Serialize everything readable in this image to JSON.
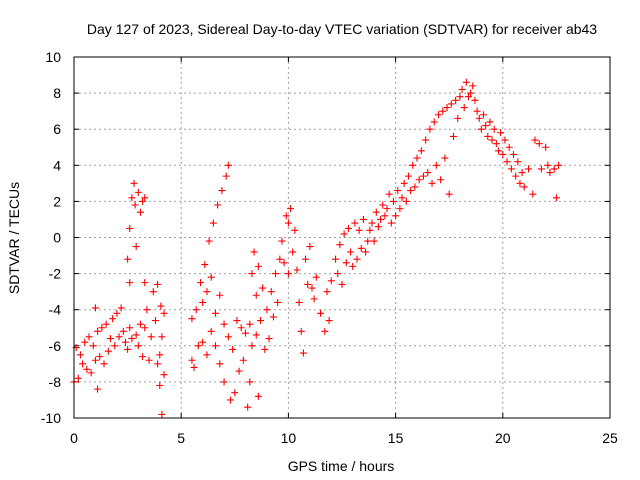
{
  "chart_data": {
    "type": "scatter",
    "title": "Day 127 of 2023, Sidereal Day-to-day VTEC variation (SDTVAR) for receiver ab43",
    "xlabel": "GPS time / hours",
    "ylabel": "SDTVAR / TECUs",
    "xlim": [
      0,
      25
    ],
    "ylim": [
      -10,
      10
    ],
    "xticks": [
      "0",
      "5",
      "10",
      "15",
      "20",
      "25"
    ],
    "yticks": [
      "-10",
      "-8",
      "-6",
      "-4",
      "-2",
      "0",
      "2",
      "4",
      "6",
      "8",
      "10"
    ],
    "grid": true,
    "marker": "+",
    "series": [
      {
        "name": "SDTVAR",
        "color": "#ff0000",
        "points": [
          [
            0.0,
            -8.0
          ],
          [
            0.1,
            -6.1
          ],
          [
            0.2,
            -7.8
          ],
          [
            0.3,
            -6.5
          ],
          [
            0.4,
            -7.0
          ],
          [
            0.5,
            -5.8
          ],
          [
            0.6,
            -7.3
          ],
          [
            0.7,
            -5.5
          ],
          [
            0.8,
            -7.5
          ],
          [
            0.9,
            -6.0
          ],
          [
            1.0,
            -3.9
          ],
          [
            1.0,
            -6.8
          ],
          [
            1.1,
            -8.4
          ],
          [
            1.1,
            -5.2
          ],
          [
            1.2,
            -6.6
          ],
          [
            1.3,
            -5.0
          ],
          [
            1.4,
            -7.0
          ],
          [
            1.5,
            -4.8
          ],
          [
            1.6,
            -6.3
          ],
          [
            1.7,
            -5.6
          ],
          [
            1.8,
            -4.5
          ],
          [
            1.9,
            -6.0
          ],
          [
            2.0,
            -4.2
          ],
          [
            2.1,
            -5.5
          ],
          [
            2.2,
            -3.9
          ],
          [
            2.3,
            -5.2
          ],
          [
            2.4,
            -5.8
          ],
          [
            2.5,
            -6.2
          ],
          [
            2.6,
            -5.0
          ],
          [
            2.7,
            -5.6
          ],
          [
            2.5,
            -1.2
          ],
          [
            2.6,
            -2.5
          ],
          [
            2.6,
            0.5
          ],
          [
            2.7,
            2.2
          ],
          [
            2.8,
            3.0
          ],
          [
            2.85,
            1.8
          ],
          [
            2.9,
            -0.5
          ],
          [
            3.0,
            2.5
          ],
          [
            3.1,
            1.4
          ],
          [
            3.2,
            2.0
          ],
          [
            3.3,
            2.2
          ],
          [
            2.9,
            -5.4
          ],
          [
            3.0,
            -6.0
          ],
          [
            3.1,
            -4.8
          ],
          [
            3.2,
            -6.6
          ],
          [
            3.3,
            -2.5
          ],
          [
            3.3,
            -5.0
          ],
          [
            3.4,
            -4.0
          ],
          [
            3.5,
            -6.8
          ],
          [
            3.6,
            -5.5
          ],
          [
            3.7,
            -3.0
          ],
          [
            3.8,
            -4.6
          ],
          [
            3.9,
            -7.0
          ],
          [
            3.9,
            -2.6
          ],
          [
            4.0,
            -8.2
          ],
          [
            4.0,
            -6.5
          ],
          [
            4.05,
            -3.8
          ],
          [
            4.1,
            -9.8
          ],
          [
            4.1,
            -5.5
          ],
          [
            4.2,
            -4.2
          ],
          [
            4.2,
            -7.6
          ],
          [
            5.5,
            -6.8
          ],
          [
            5.5,
            -4.5
          ],
          [
            5.6,
            -7.2
          ],
          [
            5.7,
            -4.0
          ],
          [
            5.8,
            -6.0
          ],
          [
            5.9,
            -2.5
          ],
          [
            6.0,
            -3.6
          ],
          [
            6.0,
            -5.8
          ],
          [
            6.1,
            -1.5
          ],
          [
            6.2,
            -3.0
          ],
          [
            6.2,
            -6.5
          ],
          [
            6.3,
            -0.2
          ],
          [
            6.4,
            -2.2
          ],
          [
            6.4,
            -5.2
          ],
          [
            6.5,
            0.8
          ],
          [
            6.6,
            -4.2
          ],
          [
            6.6,
            -6.0
          ],
          [
            6.7,
            1.8
          ],
          [
            6.8,
            -3.2
          ],
          [
            6.8,
            -7.0
          ],
          [
            6.9,
            2.6
          ],
          [
            7.0,
            -4.8
          ],
          [
            7.0,
            -8.0
          ],
          [
            7.1,
            3.4
          ],
          [
            7.2,
            4.0
          ],
          [
            7.2,
            -5.5
          ],
          [
            7.3,
            -9.0
          ],
          [
            7.4,
            -6.2
          ],
          [
            7.5,
            -8.6
          ],
          [
            7.6,
            -4.6
          ],
          [
            7.7,
            -7.4
          ],
          [
            7.8,
            -5.0
          ],
          [
            7.9,
            -6.8
          ],
          [
            8.0,
            -5.3
          ],
          [
            8.1,
            -9.4
          ],
          [
            8.2,
            -8.0
          ],
          [
            8.2,
            -4.8
          ],
          [
            8.3,
            -2.0
          ],
          [
            8.3,
            -6.0
          ],
          [
            8.4,
            -0.8
          ],
          [
            8.5,
            -3.2
          ],
          [
            8.5,
            -5.4
          ],
          [
            8.6,
            -1.6
          ],
          [
            8.6,
            -8.8
          ],
          [
            8.7,
            -4.6
          ],
          [
            8.8,
            -2.8
          ],
          [
            8.9,
            -6.2
          ],
          [
            9.0,
            -4.0
          ],
          [
            9.1,
            -5.6
          ],
          [
            9.2,
            -3.0
          ],
          [
            9.3,
            -4.4
          ],
          [
            9.4,
            -2.0
          ],
          [
            9.5,
            -3.6
          ],
          [
            9.6,
            -1.2
          ],
          [
            9.7,
            -0.2
          ],
          [
            9.8,
            -1.4
          ],
          [
            9.9,
            1.2
          ],
          [
            10.0,
            0.8
          ],
          [
            10.0,
            -2.0
          ],
          [
            10.1,
            1.6
          ],
          [
            10.2,
            -0.8
          ],
          [
            10.3,
            0.4
          ],
          [
            10.4,
            -1.8
          ],
          [
            10.5,
            -3.6
          ],
          [
            10.6,
            -5.2
          ],
          [
            10.7,
            -6.4
          ],
          [
            10.8,
            -1.2
          ],
          [
            10.9,
            -2.6
          ],
          [
            11.0,
            -0.5
          ],
          [
            11.1,
            -2.8
          ],
          [
            11.2,
            -3.4
          ],
          [
            11.3,
            -2.2
          ],
          [
            11.5,
            -4.2
          ],
          [
            11.7,
            -5.2
          ],
          [
            11.8,
            -3.0
          ],
          [
            11.9,
            -4.6
          ],
          [
            12.0,
            -2.4
          ],
          [
            12.2,
            -1.2
          ],
          [
            12.3,
            -2.0
          ],
          [
            12.4,
            -0.4
          ],
          [
            12.5,
            -2.6
          ],
          [
            12.6,
            0.2
          ],
          [
            12.7,
            -1.4
          ],
          [
            12.8,
            0.5
          ],
          [
            12.9,
            -0.8
          ],
          [
            13.0,
            -1.6
          ],
          [
            13.1,
            0.8
          ],
          [
            13.2,
            -1.2
          ],
          [
            13.3,
            0.4
          ],
          [
            13.4,
            -0.6
          ],
          [
            13.5,
            1.0
          ],
          [
            13.6,
            -0.8
          ],
          [
            13.7,
            -0.2
          ],
          [
            13.8,
            0.4
          ],
          [
            13.9,
            0.8
          ],
          [
            14.0,
            -0.2
          ],
          [
            14.1,
            1.4
          ],
          [
            14.2,
            0.6
          ],
          [
            14.3,
            1.0
          ],
          [
            14.4,
            1.8
          ],
          [
            14.5,
            1.2
          ],
          [
            14.6,
            1.6
          ],
          [
            14.7,
            2.4
          ],
          [
            14.8,
            0.8
          ],
          [
            14.9,
            2.0
          ],
          [
            15.0,
            1.2
          ],
          [
            15.1,
            2.6
          ],
          [
            15.2,
            1.6
          ],
          [
            15.3,
            2.2
          ],
          [
            15.4,
            3.0
          ],
          [
            15.5,
            2.0
          ],
          [
            15.6,
            3.4
          ],
          [
            15.7,
            2.6
          ],
          [
            15.8,
            4.0
          ],
          [
            15.9,
            2.8
          ],
          [
            16.0,
            4.4
          ],
          [
            16.1,
            3.2
          ],
          [
            16.2,
            4.8
          ],
          [
            16.3,
            3.4
          ],
          [
            16.4,
            5.4
          ],
          [
            16.5,
            3.6
          ],
          [
            16.6,
            6.0
          ],
          [
            16.7,
            3.0
          ],
          [
            16.8,
            6.4
          ],
          [
            16.9,
            4.0
          ],
          [
            17.0,
            6.8
          ],
          [
            17.1,
            3.2
          ],
          [
            17.2,
            7.0
          ],
          [
            17.3,
            4.4
          ],
          [
            17.4,
            7.2
          ],
          [
            17.5,
            2.4
          ],
          [
            17.6,
            7.4
          ],
          [
            17.7,
            5.6
          ],
          [
            17.8,
            7.6
          ],
          [
            17.9,
            6.6
          ],
          [
            18.0,
            7.8
          ],
          [
            18.1,
            8.2
          ],
          [
            18.2,
            7.2
          ],
          [
            18.3,
            8.6
          ],
          [
            18.4,
            7.8
          ],
          [
            18.5,
            8.0
          ],
          [
            18.6,
            8.4
          ],
          [
            18.7,
            7.6
          ],
          [
            18.8,
            7.0
          ],
          [
            18.9,
            6.6
          ],
          [
            19.0,
            6.0
          ],
          [
            19.1,
            6.8
          ],
          [
            19.2,
            6.2
          ],
          [
            19.3,
            5.6
          ],
          [
            19.4,
            6.4
          ],
          [
            19.5,
            5.4
          ],
          [
            19.6,
            6.0
          ],
          [
            19.7,
            5.2
          ],
          [
            19.8,
            4.8
          ],
          [
            19.9,
            5.8
          ],
          [
            20.0,
            4.6
          ],
          [
            20.1,
            5.4
          ],
          [
            20.2,
            4.2
          ],
          [
            20.3,
            5.0
          ],
          [
            20.4,
            3.8
          ],
          [
            20.5,
            4.6
          ],
          [
            20.6,
            3.4
          ],
          [
            20.7,
            4.2
          ],
          [
            20.8,
            3.0
          ],
          [
            20.9,
            3.6
          ],
          [
            21.0,
            2.8
          ],
          [
            21.2,
            3.8
          ],
          [
            21.4,
            2.4
          ],
          [
            21.5,
            5.4
          ],
          [
            21.7,
            5.2
          ],
          [
            21.8,
            3.8
          ],
          [
            22.0,
            5.0
          ],
          [
            22.1,
            4.0
          ],
          [
            22.2,
            3.6
          ],
          [
            22.4,
            3.8
          ],
          [
            22.5,
            2.2
          ],
          [
            22.6,
            4.0
          ]
        ]
      }
    ]
  }
}
